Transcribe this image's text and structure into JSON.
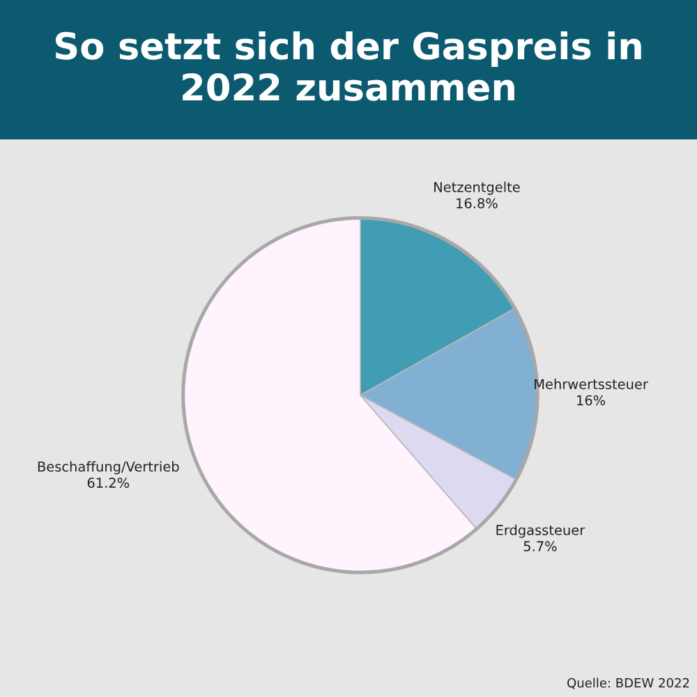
{
  "chart_data": {
    "type": "pie",
    "title": "So setzt sich der Gaspreis in 2022 zusammen",
    "categories": [
      "Netzentgelte",
      "Mehrwertssteuer",
      "Erdgassteuer",
      "Beschaffung/Vertrieb"
    ],
    "values": [
      16.8,
      16,
      5.7,
      61.2
    ],
    "value_labels": [
      "16.8%",
      "16%",
      "5.7%",
      "61.2%"
    ],
    "colors": [
      "#409db4",
      "#82b0d3",
      "#ddd9f1",
      "#fff3fd"
    ],
    "annotations": [
      "Quelle: BDEW 2022"
    ],
    "legend": false
  }
}
